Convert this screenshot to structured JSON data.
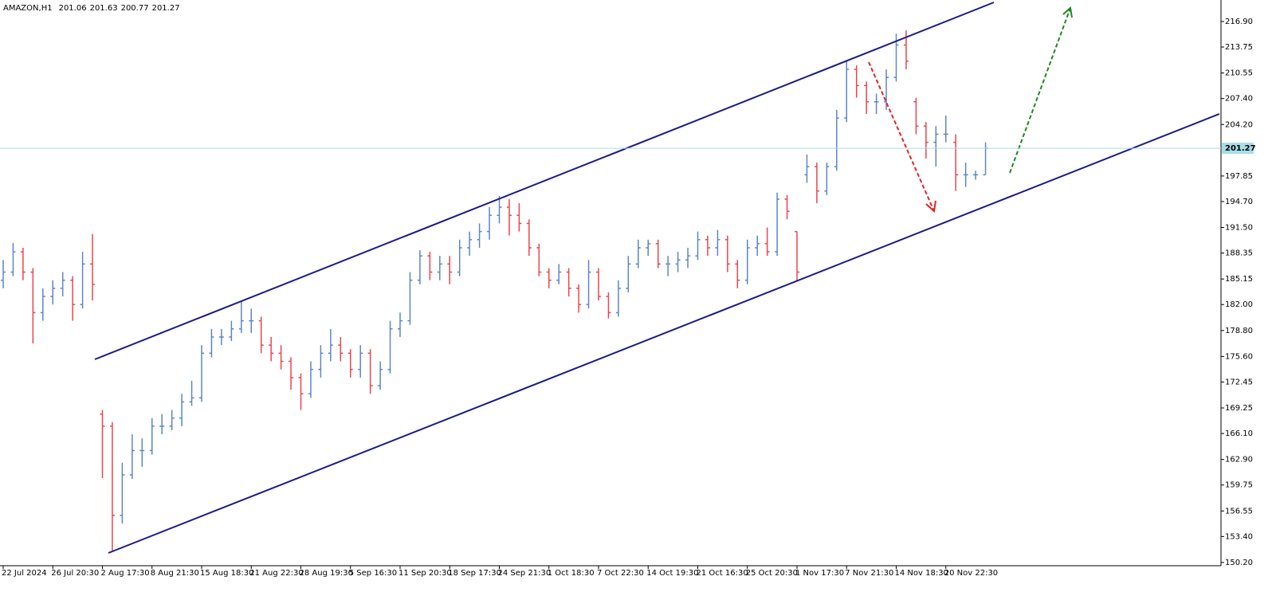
{
  "chart_data": {
    "type": "ohlc",
    "header": {
      "symbol": "AMAZON,H1",
      "ohlc": [
        201.06,
        201.63,
        200.77,
        201.27
      ]
    },
    "up_color": "#5b86c8",
    "down_color": "#e8474c",
    "current_price": 201.27,
    "current_price_color": "#a8dce8",
    "ylim": [
      149.8,
      219.55
    ],
    "yticks": [
      {
        "value": 216.9,
        "label": "216.90"
      },
      213.75,
      210.55,
      {
        "value": 207.4,
        "label": "207.40"
      },
      {
        "value": 204.2,
        "label": "204.20"
      },
      197.85,
      {
        "value": 194.7,
        "label": "194.70"
      },
      {
        "value": 191.5,
        "label": "191.50"
      },
      188.35,
      185.15,
      {
        "value": 182,
        "label": "182.00"
      },
      {
        "value": 178.8,
        "label": "178.80"
      },
      {
        "value": 175.6,
        "label": "175.60"
      },
      172.45,
      169.25,
      {
        "value": 166.1,
        "label": "166.10"
      },
      {
        "value": 162.9,
        "label": "162.90"
      },
      159.75,
      156.55,
      {
        "value": 153.4,
        "label": "153.40"
      },
      {
        "value": 150.2,
        "label": "150.20"
      }
    ],
    "categories": [
      "22 Jul 2024",
      null,
      null,
      null,
      null,
      "26 Jul 20:30",
      null,
      null,
      null,
      null,
      "2 Aug 17:30",
      null,
      null,
      null,
      null,
      "8 Aug 21:30",
      null,
      null,
      null,
      null,
      "15 Aug 18:30",
      null,
      null,
      null,
      null,
      "21 Aug 22:30",
      null,
      null,
      null,
      null,
      "28 Aug 19:30",
      null,
      null,
      null,
      null,
      "5 Sep 16:30",
      null,
      null,
      null,
      null,
      "11 Sep 20:30",
      null,
      null,
      null,
      null,
      "18 Sep 17:30",
      null,
      null,
      null,
      null,
      "24 Sep 21:30",
      null,
      null,
      null,
      null,
      "1 Oct 18:30",
      null,
      null,
      null,
      null,
      "7 Oct 22:30",
      null,
      null,
      null,
      null,
      "14 Oct 19:30",
      null,
      null,
      null,
      null,
      "21 Oct 16:30",
      null,
      null,
      null,
      null,
      "25 Oct 20:30",
      null,
      null,
      null,
      null,
      "1 Nov 17:30",
      null,
      null,
      null,
      null,
      "7 Nov 21:30",
      null,
      null,
      null,
      null,
      "14 Nov 18:30",
      null,
      null,
      null,
      null,
      "20 Nov 22:30",
      null,
      null,
      null,
      null
    ],
    "open": [
      185,
      186,
      188.5,
      186,
      181,
      183,
      184,
      185,
      182,
      187,
      168.5,
      167,
      156,
      161,
      164,
      164,
      167,
      167,
      168,
      170,
      170.5,
      176,
      178,
      178,
      179,
      180,
      180,
      177,
      176,
      175,
      173,
      171,
      174,
      176,
      177,
      176,
      174,
      176,
      172,
      174,
      179,
      180,
      185,
      188,
      186,
      187,
      186,
      189,
      190,
      191,
      193,
      194,
      193,
      192,
      189,
      186,
      185,
      186,
      184,
      182,
      186,
      183,
      181,
      184,
      187,
      189,
      189.5,
      187,
      187,
      187.5,
      188,
      190,
      189,
      190,
      187,
      185,
      189,
      189.5,
      188.5,
      195,
      191,
      198,
      199,
      196,
      199,
      205,
      211,
      209,
      207,
      207,
      210,
      214,
      207,
      204,
      202,
      203,
      202,
      198,
      198,
      198
    ],
    "high": [
      187.5,
      189.6,
      189,
      186.5,
      184,
      185,
      186,
      185.5,
      188.5,
      190.7,
      169,
      167.5,
      162.5,
      166,
      165.5,
      168,
      168.5,
      169,
      171,
      172.6,
      177,
      179,
      179,
      180,
      182.4,
      181.5,
      180.5,
      178,
      177,
      175.5,
      173.5,
      175,
      177,
      179,
      178,
      176.5,
      177,
      176.5,
      175,
      180,
      181,
      186,
      188.7,
      188.5,
      188,
      188,
      190,
      191,
      192,
      194,
      195.4,
      195,
      194.5,
      192.5,
      189.5,
      186.5,
      187,
      186.5,
      184.5,
      187.5,
      186.5,
      183.5,
      185,
      188,
      190,
      190,
      190,
      188,
      188.5,
      189,
      191,
      190.5,
      191.2,
      190.5,
      187.5,
      190,
      190.5,
      191.5,
      195.8,
      195.5,
      191,
      200.5,
      199.5,
      199.5,
      206,
      212,
      211.5,
      209.5,
      208,
      211,
      215.4,
      215.8,
      207.5,
      204.5,
      204,
      205.3,
      203,
      199.5,
      198.5,
      202
    ],
    "low": [
      184,
      185.5,
      185,
      177.2,
      180,
      182,
      183,
      180,
      181.5,
      182.5,
      160.6,
      151.5,
      155,
      160.5,
      162,
      163.5,
      166,
      166.5,
      167,
      169.5,
      170,
      175.5,
      177,
      177.5,
      178.5,
      178.5,
      176,
      175,
      174,
      171.5,
      169,
      170.5,
      173,
      175,
      175,
      173,
      173,
      171,
      171.5,
      173.5,
      178,
      179.5,
      184.5,
      185,
      185,
      184.5,
      185.5,
      188,
      189,
      190,
      192,
      190.5,
      191,
      188,
      185.5,
      184,
      184.5,
      183,
      181,
      181.5,
      182.5,
      180.3,
      180.5,
      183.5,
      186.5,
      188,
      186.5,
      185.5,
      186,
      186.5,
      187.5,
      188,
      188,
      186,
      184,
      184.5,
      188,
      188,
      188,
      192.5,
      185,
      197,
      194.5,
      195.5,
      198.5,
      204.5,
      207.5,
      205.5,
      205.5,
      206,
      209.5,
      211,
      203,
      200,
      199,
      202,
      196,
      196.5,
      197.4,
      198
    ],
    "close": [
      186,
      188.5,
      186,
      181,
      183,
      184,
      185,
      182,
      187,
      184.5,
      167,
      156,
      161,
      164,
      164,
      167,
      167,
      168,
      170,
      170.5,
      176,
      178,
      178,
      179,
      180,
      180,
      177,
      176,
      175,
      173,
      171,
      174,
      176,
      177,
      176,
      174,
      176,
      172,
      174,
      179,
      180,
      185,
      188,
      186,
      187,
      186,
      189,
      190,
      191,
      193,
      194,
      193,
      192,
      189,
      186,
      185,
      186,
      184,
      182,
      186,
      183,
      181,
      184,
      187,
      189,
      189.5,
      187,
      187,
      187.5,
      188,
      190,
      189,
      190,
      187,
      185,
      189,
      189.5,
      188.5,
      195,
      193.5,
      186,
      199,
      196,
      199,
      205,
      211,
      209,
      207,
      207,
      210,
      214,
      212,
      204,
      202,
      203,
      203,
      198,
      198,
      198,
      201.27
    ]
  }
}
